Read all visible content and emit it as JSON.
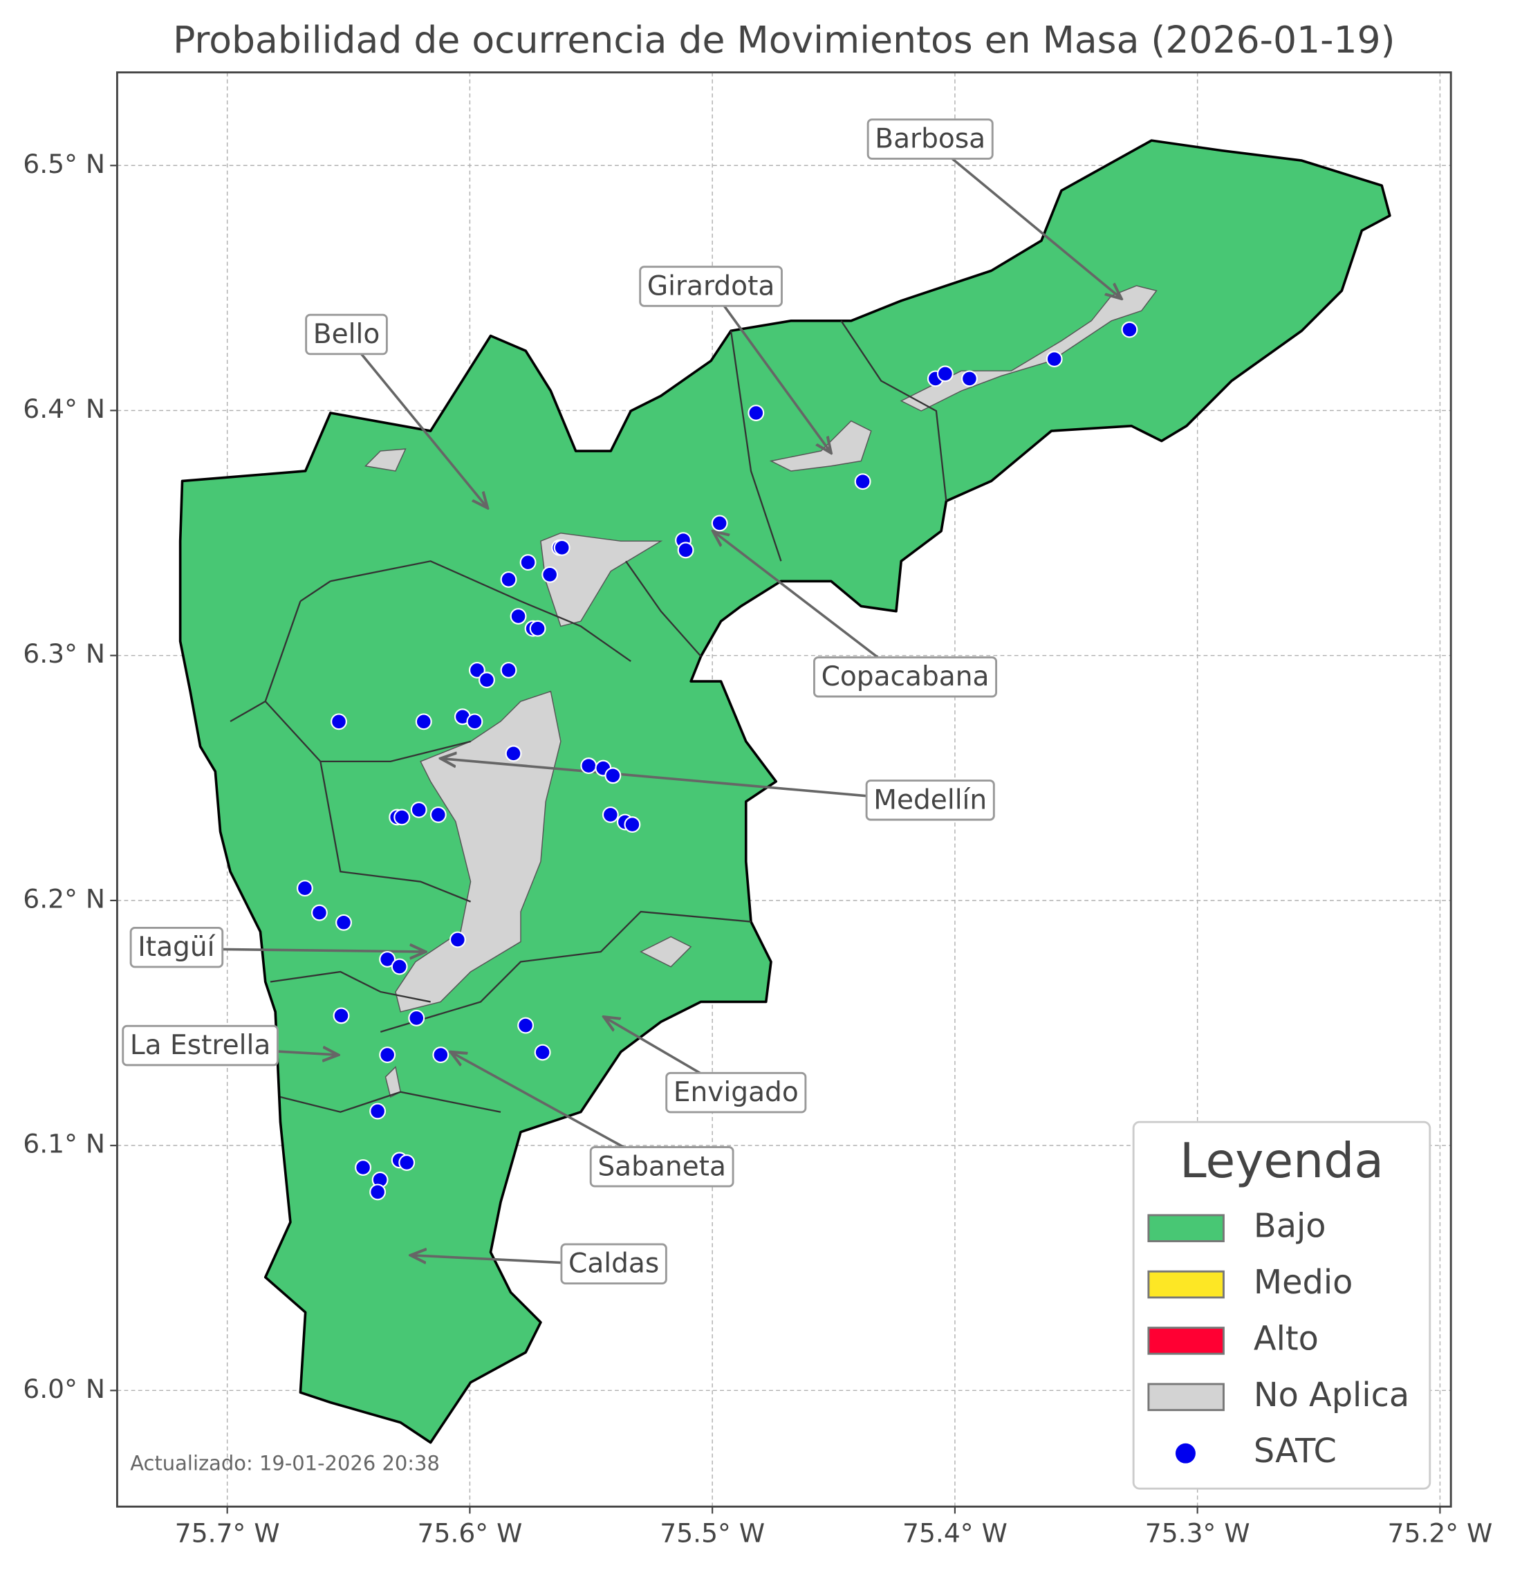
{
  "title": "Probabilidad de ocurrencia de Movimientos en Masa (2026-01-19)",
  "updated": "Actualizado: 19-01-2026 20:38",
  "map": {
    "xlim": [
      -75.7454,
      -75.1955
    ],
    "ylim": [
      5.9526,
      6.538
    ],
    "xticks": [
      {
        "value": -75.7,
        "label": "75.7° W"
      },
      {
        "value": -75.6,
        "label": "75.6° W"
      },
      {
        "value": -75.5,
        "label": "75.5° W"
      },
      {
        "value": -75.4,
        "label": "75.4° W"
      },
      {
        "value": -75.3,
        "label": "75.3° W"
      },
      {
        "value": -75.2,
        "label": "75.2° W"
      }
    ],
    "yticks": [
      {
        "value": 6.0,
        "label": "6.0° N"
      },
      {
        "value": 6.1,
        "label": "6.1° N"
      },
      {
        "value": 6.2,
        "label": "6.2° N"
      },
      {
        "value": 6.3,
        "label": "6.3° N"
      },
      {
        "value": 6.4,
        "label": "6.4° N"
      },
      {
        "value": 6.5,
        "label": "6.5° N"
      }
    ],
    "grid": true
  },
  "labels": [
    "Barbosa",
    "Girardota",
    "Bello",
    "Copacabana",
    "Medellín",
    "Itagüí",
    "La Estrella",
    "Envigado",
    "Sabaneta",
    "Caldas"
  ],
  "legend": {
    "title": "Leyenda",
    "entries": [
      {
        "label": "Bajo",
        "color": "#48c774",
        "symbol": "patch"
      },
      {
        "label": "Medio",
        "color": "#fde725",
        "symbol": "patch"
      },
      {
        "label": "Alto",
        "color": "#ff0033",
        "symbol": "patch"
      },
      {
        "label": "No Aplica",
        "color": "#d3d3d3",
        "symbol": "patch"
      },
      {
        "label": "SATC",
        "color": "#0000ee",
        "symbol": "point"
      }
    ]
  },
  "satc": {
    "lon": [
      -75.482,
      -75.408,
      -75.404,
      -75.394,
      -75.359,
      -75.328,
      -75.438,
      -75.497,
      -75.512,
      -75.511,
      -75.563,
      -75.562,
      -75.576,
      -75.567,
      -75.584,
      -75.58,
      -75.574,
      -75.572,
      -75.597,
      -75.593,
      -75.584,
      -75.654,
      -75.619,
      -75.603,
      -75.598,
      -75.582,
      -75.551,
      -75.545,
      -75.541,
      -75.542,
      -75.536,
      -75.533,
      -75.621,
      -75.63,
      -75.628,
      -75.613,
      -75.668,
      -75.662,
      -75.652,
      -75.605,
      -75.634,
      -75.629,
      -75.653,
      -75.622,
      -75.577,
      -75.57,
      -75.634,
      -75.612,
      -75.638,
      -75.644,
      -75.637,
      -75.638,
      -75.629,
      -75.626
    ],
    "lat": [
      6.399,
      6.413,
      6.415,
      6.413,
      6.421,
      6.433,
      6.371,
      6.354,
      6.347,
      6.343,
      6.344,
      6.344,
      6.338,
      6.333,
      6.331,
      6.316,
      6.311,
      6.311,
      6.294,
      6.29,
      6.294,
      6.273,
      6.273,
      6.275,
      6.273,
      6.26,
      6.255,
      6.254,
      6.251,
      6.235,
      6.232,
      6.231,
      6.237,
      6.234,
      6.234,
      6.235,
      6.205,
      6.195,
      6.191,
      6.184,
      6.176,
      6.173,
      6.153,
      6.152,
      6.149,
      6.138,
      6.137,
      6.137,
      6.114,
      6.091,
      6.086,
      6.081,
      6.094,
      6.093
    ]
  }
}
